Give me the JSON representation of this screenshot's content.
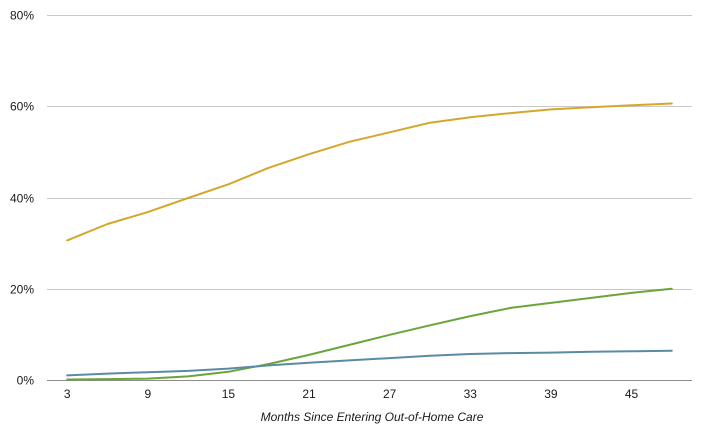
{
  "chart_data": {
    "type": "line",
    "title": "",
    "xlabel": "Months Since Entering Out-of-Home Care",
    "ylabel": "",
    "x_ticks": [
      3,
      9,
      15,
      21,
      27,
      33,
      39,
      45
    ],
    "y_ticks": [
      0,
      20,
      40,
      60,
      80
    ],
    "y_tick_labels": [
      "0%",
      "20%",
      "40%",
      "60%",
      "80%"
    ],
    "xlim": [
      1.5,
      49.5
    ],
    "ylim": [
      0,
      80
    ],
    "grid": "horizontal",
    "legend": "none",
    "x": [
      3,
      6,
      9,
      12,
      15,
      18,
      21,
      24,
      27,
      30,
      33,
      36,
      39,
      42,
      45,
      48
    ],
    "series": [
      {
        "color": "#d4a72c",
        "values": [
          30.6,
          34.2,
          36.8,
          39.9,
          42.9,
          46.5,
          49.5,
          52.2,
          54.3,
          56.4,
          57.6,
          58.5,
          59.3,
          59.8,
          60.2,
          60.6
        ]
      },
      {
        "color": "#6aa53a",
        "values": [
          0.1,
          0.2,
          0.3,
          0.8,
          1.8,
          3.5,
          5.5,
          7.7,
          9.9,
          12.0,
          14.0,
          15.8,
          16.9,
          18.0,
          19.1,
          20.0
        ]
      },
      {
        "color": "#5a8aa6",
        "values": [
          1.0,
          1.4,
          1.7,
          2.0,
          2.5,
          3.2,
          3.8,
          4.3,
          4.8,
          5.3,
          5.7,
          5.9,
          6.0,
          6.2,
          6.3,
          6.4
        ]
      }
    ]
  }
}
